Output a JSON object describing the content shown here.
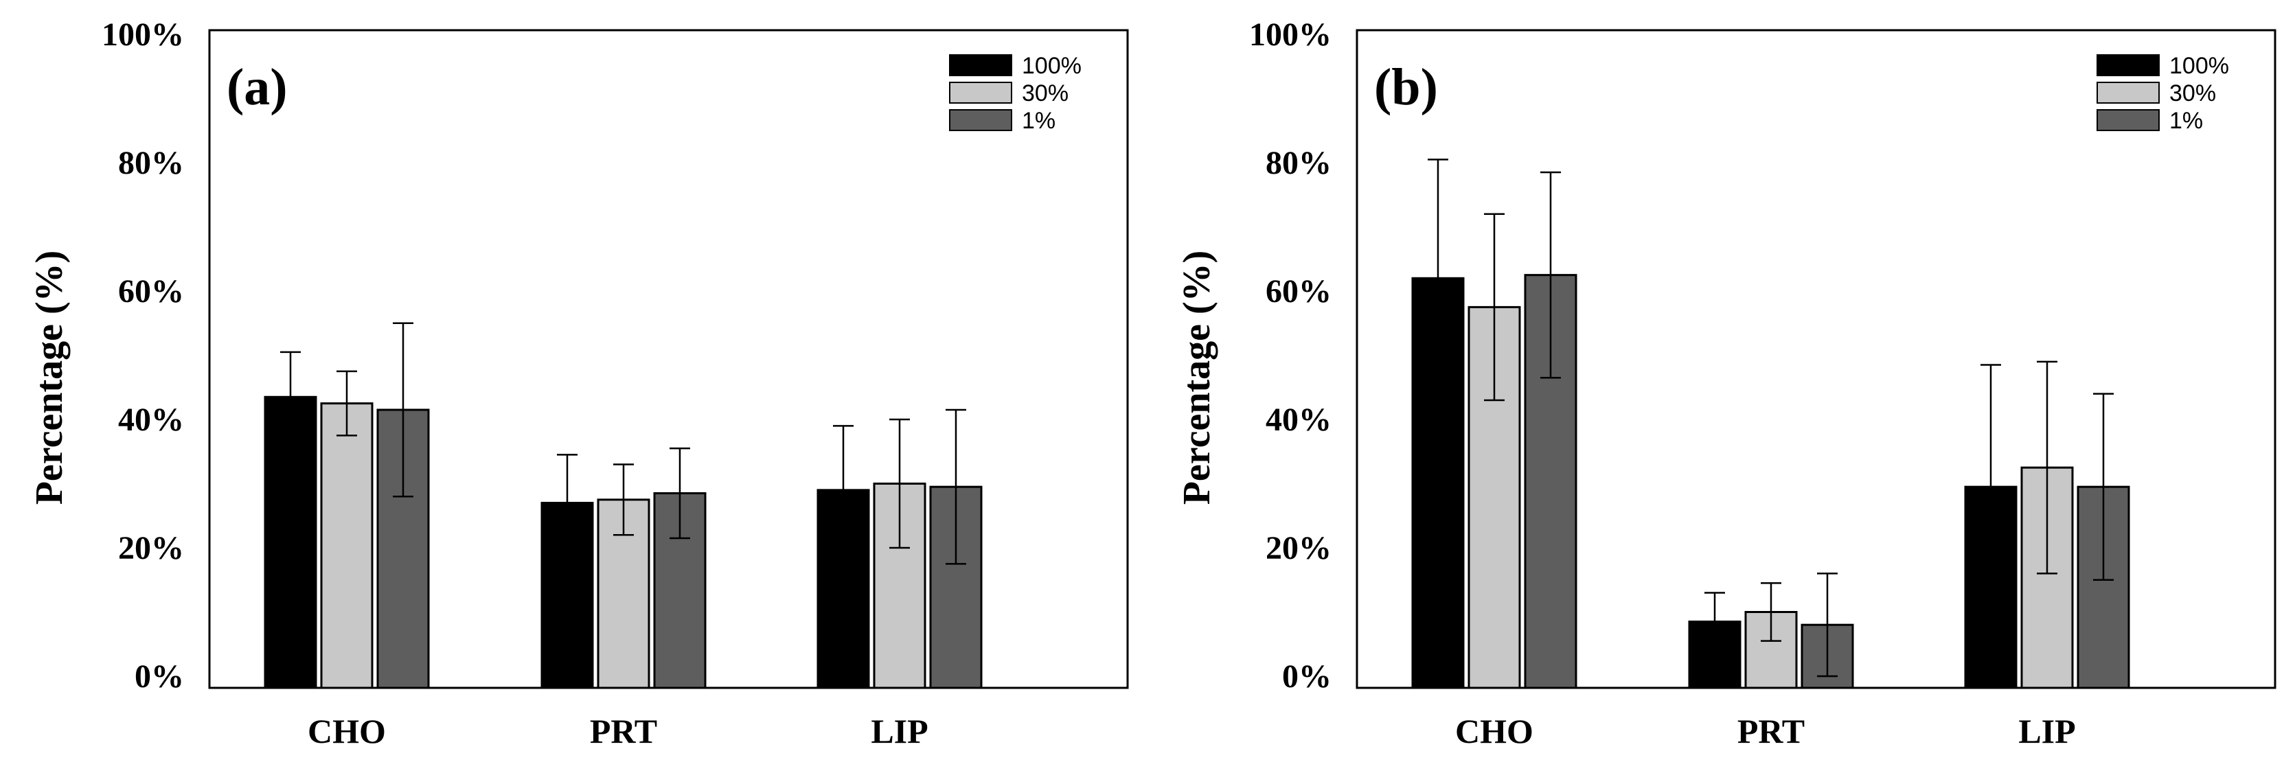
{
  "chart_data": [
    {
      "type": "bar",
      "panel_label": "(a)",
      "categories": [
        "CHO",
        "PRT",
        "LIP"
      ],
      "ylabel": "Percentage (%)",
      "xlabel": "",
      "ylim": [
        0,
        100
      ],
      "yticks": [
        "0%",
        "20%",
        "40%",
        "60%",
        "80%",
        "100%"
      ],
      "legend_position": "top-right",
      "series": [
        {
          "name": "100%",
          "color": "#000000",
          "values": [
            43.5,
            27,
            29
          ],
          "errors": [
            7,
            7.5,
            10
          ]
        },
        {
          "name": "30%",
          "color": "#c8c8c8",
          "values": [
            42.5,
            27.5,
            30
          ],
          "errors": [
            5,
            5.5,
            10
          ]
        },
        {
          "name": "1%",
          "color": "#5e5e5e",
          "values": [
            41.5,
            28.5,
            29.5
          ],
          "errors": [
            13.5,
            7,
            12
          ]
        }
      ]
    },
    {
      "type": "bar",
      "panel_label": "(b)",
      "categories": [
        "CHO",
        "PRT",
        "LIP"
      ],
      "ylabel": "Percentage (%)",
      "xlabel": "",
      "ylim": [
        0,
        100
      ],
      "yticks": [
        "0%",
        "20%",
        "40%",
        "60%",
        "80%",
        "100%"
      ],
      "legend_position": "top-right",
      "series": [
        {
          "name": "100%",
          "color": "#000000",
          "values": [
            62,
            8.5,
            29.5
          ],
          "errors": [
            18.5,
            4.5,
            19
          ]
        },
        {
          "name": "30%",
          "color": "#c8c8c8",
          "values": [
            57.5,
            10,
            32.5
          ],
          "errors": [
            14.5,
            4.5,
            16.5
          ]
        },
        {
          "name": "1%",
          "color": "#5e5e5e",
          "values": [
            62.5,
            8,
            29.5
          ],
          "errors": [
            16,
            8,
            14.5
          ]
        }
      ]
    }
  ]
}
